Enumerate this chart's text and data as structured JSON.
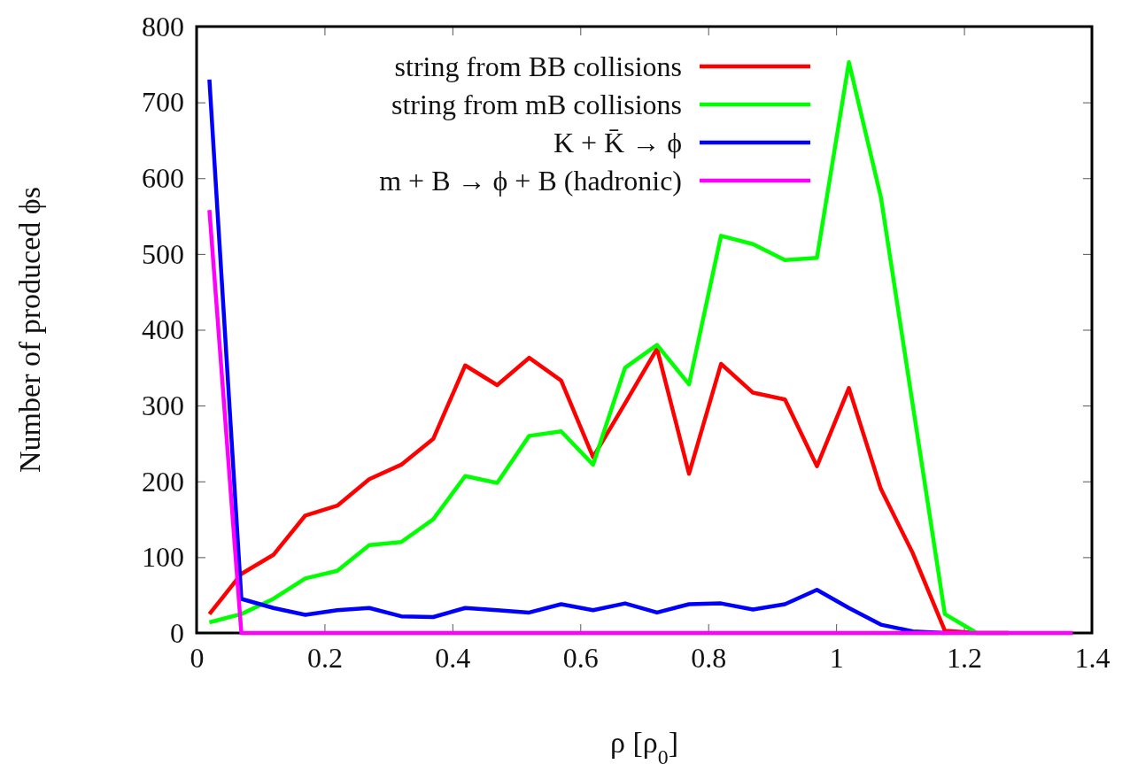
{
  "chart_data": {
    "type": "line",
    "xlabel": "ρ [ρ$_{0}$]",
    "ylabel": "Number of produced ϕs",
    "x": [
      0.02,
      0.07,
      0.12,
      0.17,
      0.22,
      0.27,
      0.32,
      0.37,
      0.42,
      0.47,
      0.52,
      0.57,
      0.62,
      0.67,
      0.72,
      0.77,
      0.82,
      0.87,
      0.92,
      0.97,
      1.02,
      1.07,
      1.12,
      1.17,
      1.22,
      1.27,
      1.32,
      1.37
    ],
    "series": [
      {
        "name": "string from BB collisions",
        "color": "#ff0000",
        "values": [
          25,
          78,
          103,
          155,
          168,
          203,
          222,
          256,
          353,
          327,
          363,
          333,
          232,
          303,
          375,
          210,
          355,
          317,
          308,
          220,
          323,
          190,
          105,
          3,
          0,
          0,
          null,
          null
        ]
      },
      {
        "name": "string from mB collisions",
        "color": "#00ff00",
        "values": [
          14,
          25,
          45,
          72,
          82,
          116,
          120,
          150,
          207,
          198,
          260,
          266,
          222,
          350,
          380,
          328,
          524,
          513,
          492,
          495,
          753,
          575,
          300,
          25,
          0,
          0,
          null,
          null
        ]
      },
      {
        "name": "K + K̄ → ϕ",
        "color": "#0000ff",
        "values": [
          730,
          45,
          33,
          24,
          30,
          33,
          22,
          21,
          33,
          30,
          27,
          38,
          30,
          39,
          27,
          38,
          39,
          31,
          38,
          57,
          33,
          11,
          2,
          0,
          null,
          null,
          null,
          null
        ]
      },
      {
        "name": "m + B → ϕ + B (hadronic)",
        "color": "#ff00ff",
        "values": [
          558,
          0,
          0,
          0,
          0,
          0,
          0,
          0,
          0,
          0,
          0,
          0,
          0,
          0,
          0,
          0,
          0,
          0,
          0,
          0,
          0,
          0,
          0,
          0,
          0,
          0,
          0,
          0
        ]
      }
    ],
    "xlim": [
      0,
      1.4
    ],
    "xticks": [
      0,
      0.2,
      0.4,
      0.6,
      0.8,
      1,
      1.2,
      1.4
    ],
    "ylim": [
      0,
      800
    ],
    "yticks": [
      0,
      100,
      200,
      300,
      400,
      500,
      600,
      700,
      800
    ],
    "grid": false,
    "legend": "top",
    "marker": "none",
    "line_style": "solid"
  }
}
